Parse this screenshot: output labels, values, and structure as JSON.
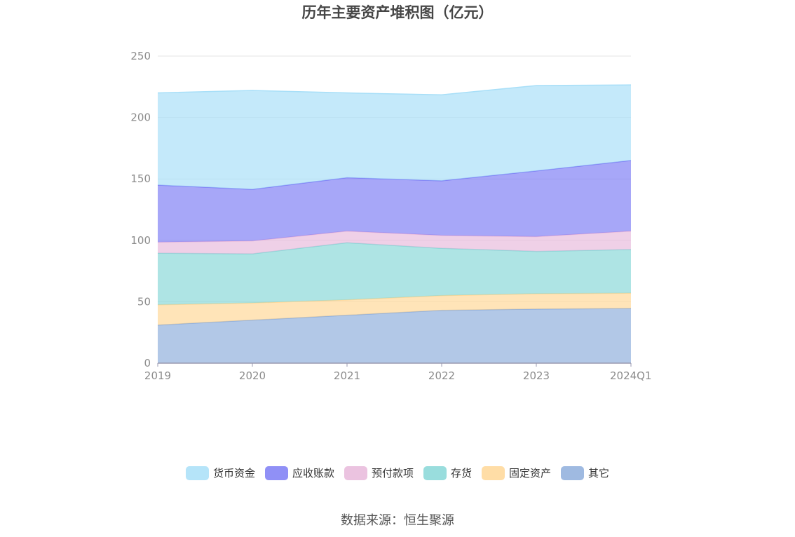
{
  "chart_data": {
    "type": "area",
    "stacked": true,
    "title": "历年主要资产堆积图（亿元）",
    "categories": [
      "2019",
      "2020",
      "2021",
      "2022",
      "2023",
      "2024Q1"
    ],
    "ylim": [
      0,
      250
    ],
    "yticks": [
      "0",
      "50",
      "100",
      "150",
      "200",
      "250"
    ],
    "grid": true,
    "legend_position": "bottom",
    "series": [
      {
        "name": "其它",
        "color": "#8eaedc",
        "values": [
          31,
          35,
          39,
          43,
          44,
          44.5
        ]
      },
      {
        "name": "固定资产",
        "color": "#ffd797",
        "values": [
          16.5,
          14,
          12.5,
          12,
          12.5,
          12.5
        ]
      },
      {
        "name": "存货",
        "color": "#87d7d7",
        "values": [
          42,
          40,
          46.5,
          38.5,
          34.5,
          35.5
        ]
      },
      {
        "name": "预付款项",
        "color": "#e8b9db",
        "values": [
          9,
          10.5,
          9.5,
          10.5,
          12,
          15
        ]
      },
      {
        "name": "应收账款",
        "color": "#7d7df5",
        "values": [
          46.5,
          42,
          43.5,
          44.5,
          53.5,
          57.5
        ]
      },
      {
        "name": "货币资金",
        "color": "#a8dff8",
        "values": [
          75,
          80.5,
          69,
          70,
          69.5,
          61.5
        ]
      }
    ]
  },
  "legend_order": [
    "货币资金",
    "应收账款",
    "预付款项",
    "存货",
    "固定资产",
    "其它"
  ],
  "source": "数据来源：恒生聚源"
}
